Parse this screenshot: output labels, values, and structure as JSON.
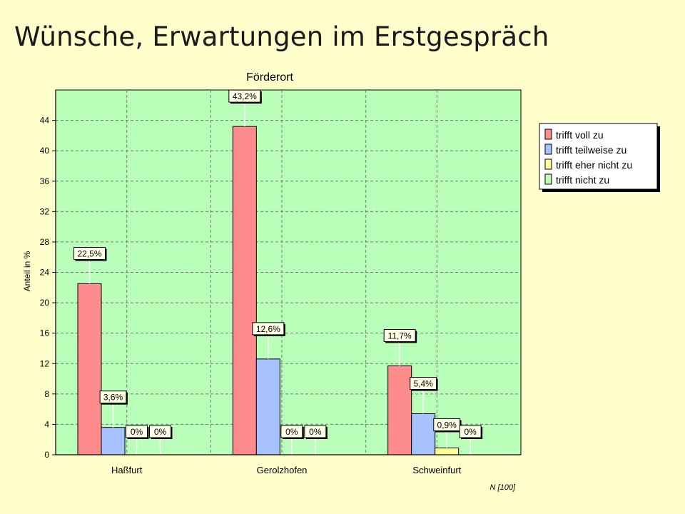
{
  "slide": {
    "title": "Wünsche, Erwartungen im Erstgespräch"
  },
  "chart_data": {
    "type": "bar",
    "title": "Förderort",
    "xlabel": "",
    "ylabel": "Anteil in %",
    "ylim": [
      0,
      48
    ],
    "yticks": [
      0,
      4,
      8,
      12,
      16,
      20,
      24,
      28,
      32,
      36,
      40,
      44
    ],
    "grid": true,
    "legend_position": "right",
    "categories": [
      "Haßfurt",
      "Gerolzhofen",
      "Schweinfurt"
    ],
    "series": [
      {
        "name": "trifft voll zu",
        "color": "#ff8c8c",
        "values": [
          22.5,
          43.2,
          11.7
        ],
        "labels": [
          "22,5%",
          "43,2%",
          "11,7%"
        ]
      },
      {
        "name": "trifft teilweise zu",
        "color": "#a7c3ff",
        "values": [
          3.6,
          12.6,
          5.4
        ],
        "labels": [
          "3,6%",
          "12,6%",
          "5,4%"
        ]
      },
      {
        "name": "trifft eher nicht zu",
        "color": "#ffff99",
        "values": [
          0,
          0,
          0.9
        ],
        "labels": [
          "0%",
          "0%",
          "0,9%"
        ]
      },
      {
        "name": "trifft nicht zu",
        "color": "#b9ffb9",
        "values": [
          0,
          0,
          0
        ],
        "labels": [
          "0%",
          "0%",
          "0%"
        ]
      }
    ],
    "note": "N [100]",
    "plot_background": "#b9ffb9",
    "page_background": "#ffffcc"
  }
}
